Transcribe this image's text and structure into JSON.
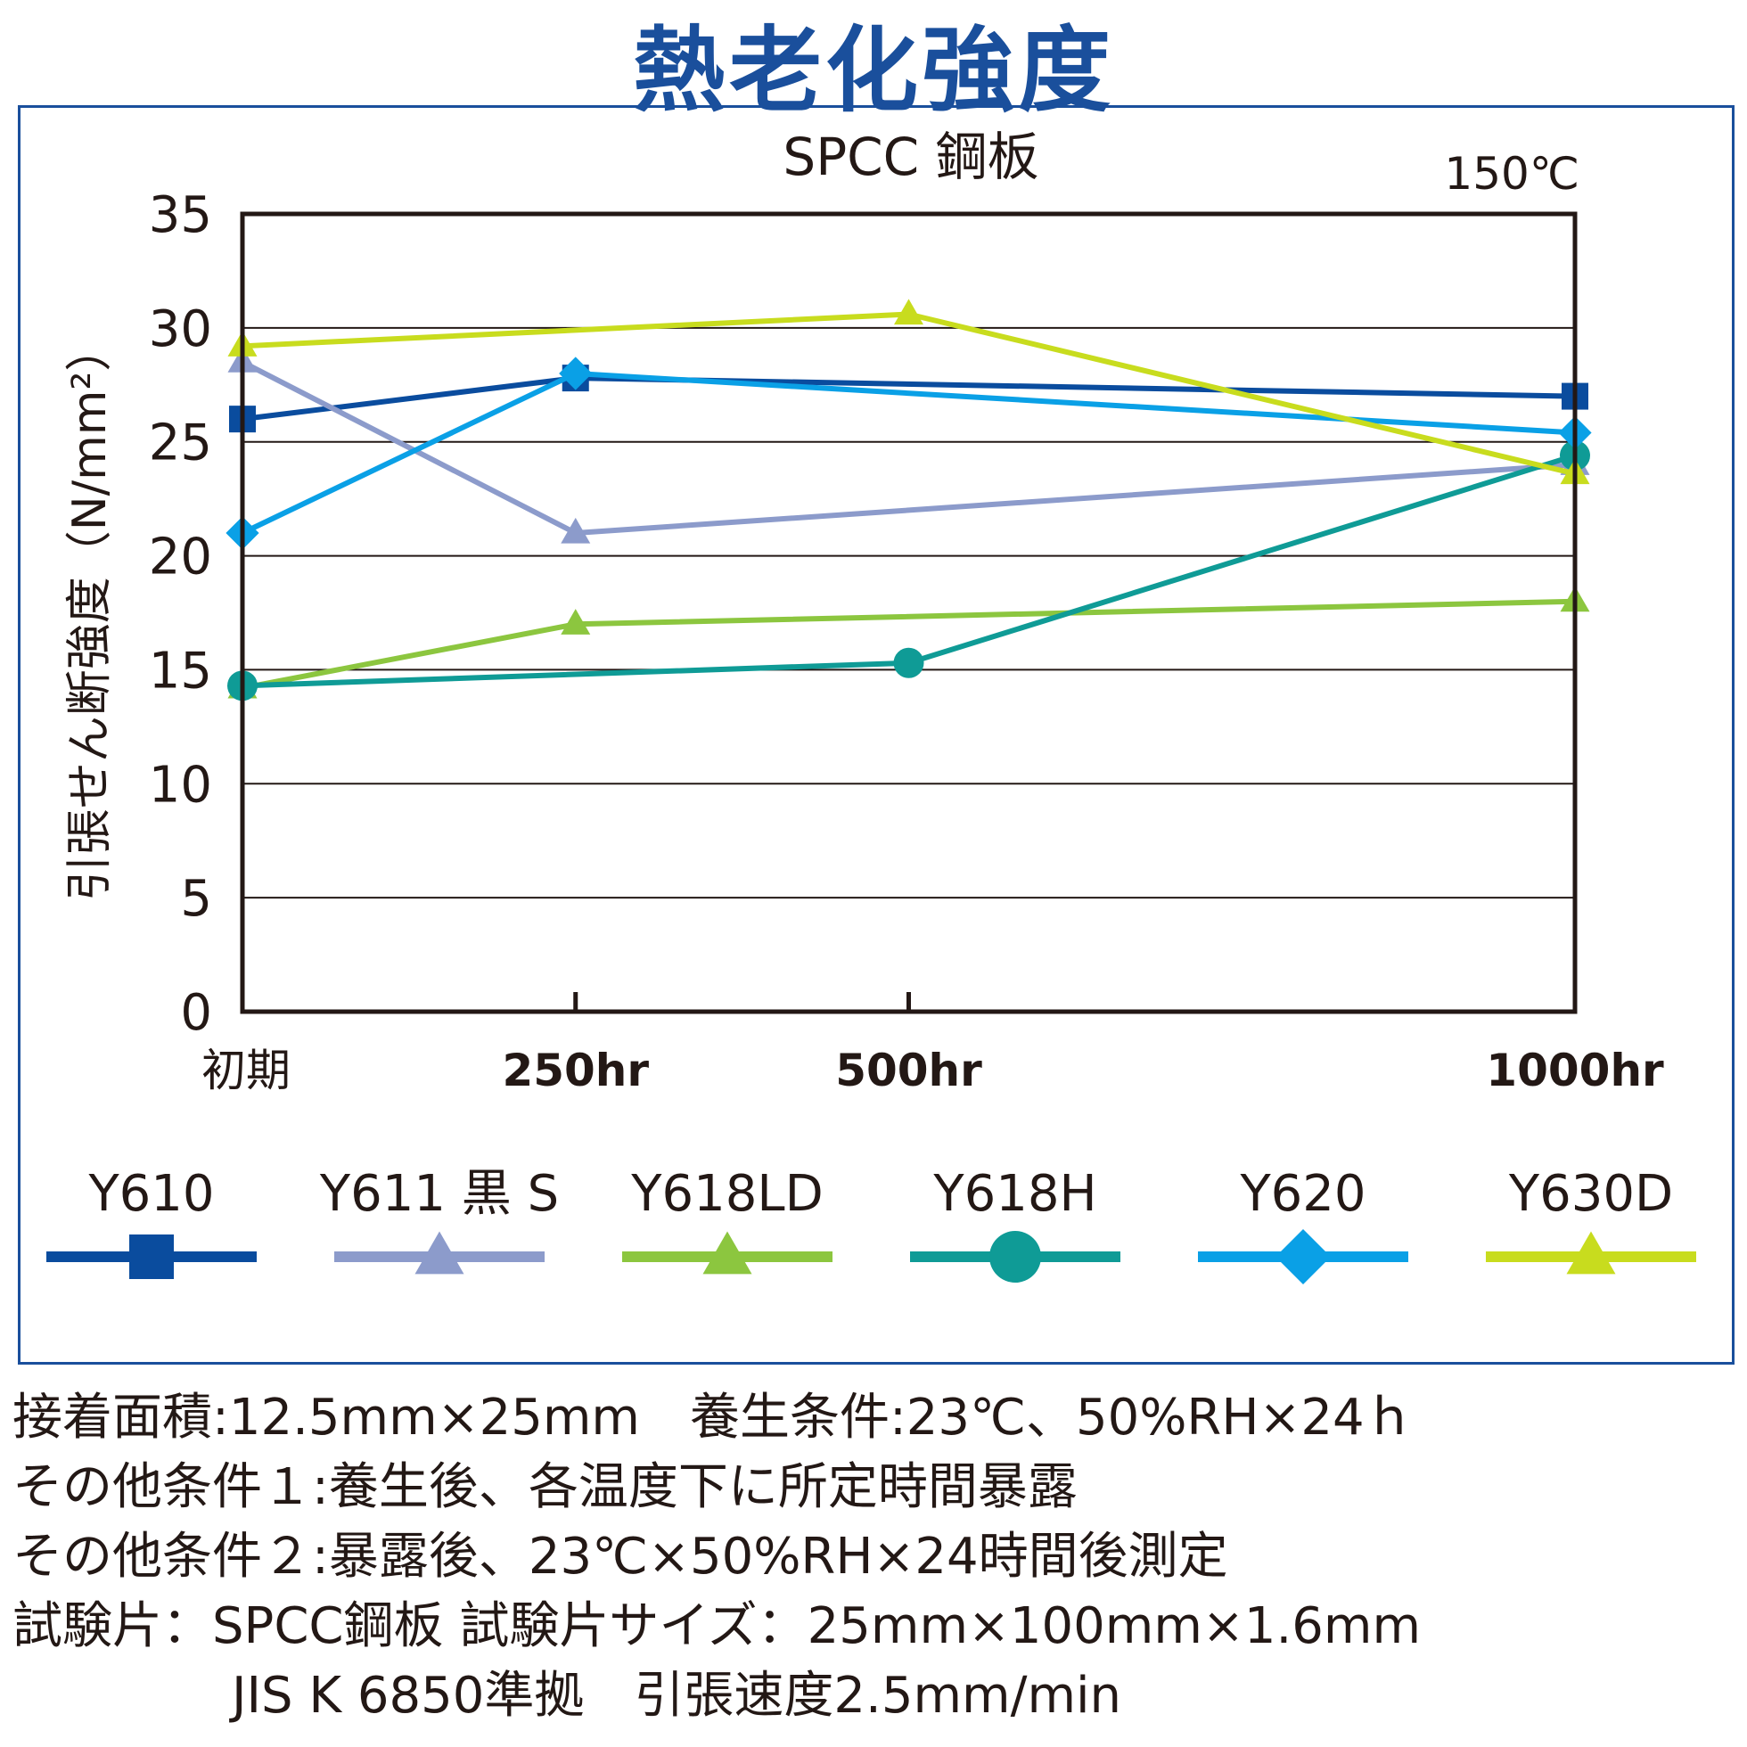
{
  "title": "熱老化強度",
  "chart_data": {
    "type": "line",
    "subtitle": "SPCC 鋼板",
    "condition_label": "150℃",
    "ylabel": "引張せん断強度（N/mm²）",
    "ylim": [
      0,
      35
    ],
    "yticks": [
      0,
      5,
      10,
      15,
      20,
      25,
      30,
      35
    ],
    "grid": true,
    "legend_position": "bottom",
    "x_ticks": [
      {
        "label": "初期",
        "hours": 0
      },
      {
        "label": "250hr",
        "hours": 250
      },
      {
        "label": "500hr",
        "hours": 500
      },
      {
        "label": "1000hr",
        "hours": 1000
      }
    ],
    "series": [
      {
        "name": "Y610",
        "color": "#0a4c9e",
        "marker": "square",
        "points": [
          {
            "hours": 0,
            "value": 26.0
          },
          {
            "hours": 250,
            "value": 27.8
          },
          {
            "hours": 1000,
            "value": 27.0
          }
        ]
      },
      {
        "name": "Y611 黒 S",
        "color": "#8c9bcb",
        "marker": "triangle",
        "points": [
          {
            "hours": 0,
            "value": 28.5
          },
          {
            "hours": 250,
            "value": 21.0
          },
          {
            "hours": 1000,
            "value": 24.0
          }
        ]
      },
      {
        "name": "Y618LD",
        "color": "#8cc63f",
        "marker": "triangle",
        "points": [
          {
            "hours": 0,
            "value": 14.2
          },
          {
            "hours": 250,
            "value": 17.0
          },
          {
            "hours": 1000,
            "value": 18.0
          }
        ]
      },
      {
        "name": "Y618H",
        "color": "#0f9b96",
        "marker": "circle",
        "points": [
          {
            "hours": 0,
            "value": 14.3
          },
          {
            "hours": 500,
            "value": 15.3
          },
          {
            "hours": 1000,
            "value": 24.4
          }
        ]
      },
      {
        "name": "Y620",
        "color": "#0aa0e6",
        "marker": "diamond",
        "points": [
          {
            "hours": 0,
            "value": 21.0
          },
          {
            "hours": 250,
            "value": 28.0
          },
          {
            "hours": 1000,
            "value": 25.4
          }
        ]
      },
      {
        "name": "Y630D",
        "color": "#c8dc1e",
        "marker": "triangle",
        "points": [
          {
            "hours": 0,
            "value": 29.2
          },
          {
            "hours": 500,
            "value": 30.6
          },
          {
            "hours": 1000,
            "value": 23.6
          }
        ]
      }
    ]
  },
  "notes": [
    "接着面積:12.5mm×25mm　養生条件:23℃、50%RH×24ｈ",
    "その他条件１:養生後、各温度下に所定時間暴露",
    "その他条件２:暴露後、23℃×50%RH×24時間後測定",
    "試験片：SPCC鋼板 試験片サイズ：25mm×100mm×1.6mm",
    "JIS K 6850準拠　引張速度2.5mm/min"
  ]
}
